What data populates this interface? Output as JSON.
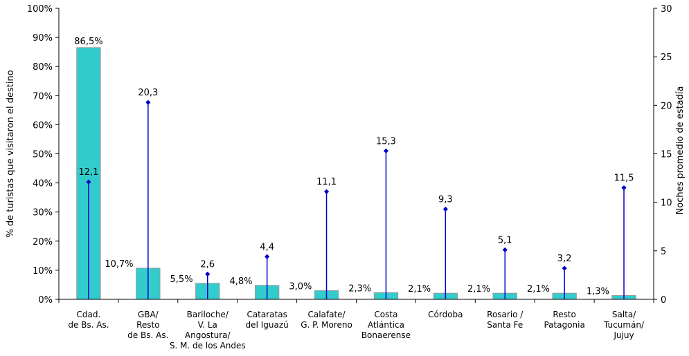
{
  "chart_data": {
    "type": "bar",
    "categories": [
      [
        "Cdad.",
        "de Bs. As."
      ],
      [
        "GBA/",
        "Resto",
        "de Bs. As."
      ],
      [
        "Bariloche/",
        "V. La",
        "Angostura/",
        "S. M. de los Andes"
      ],
      [
        "Cataratas",
        "del Iguazú"
      ],
      [
        "Calafate/",
        "G. P. Moreno"
      ],
      [
        "Costa",
        "Atlántica",
        "Bonaerense"
      ],
      [
        "Córdoba"
      ],
      [
        "Rosario /",
        "Santa Fe"
      ],
      [
        "Resto",
        "Patagonia"
      ],
      [
        "Salta/",
        "Tucumán/",
        "Jujuy"
      ]
    ],
    "series": [
      {
        "axis": "left",
        "type": "bar",
        "values": [
          86.5,
          10.7,
          5.5,
          4.8,
          3.0,
          2.3,
          2.1,
          2.1,
          2.1,
          1.3
        ],
        "labels": [
          "86,5%",
          "10,7%",
          "5,5%",
          "4,8%",
          "3,0%",
          "2,3%",
          "2,1%",
          "2,1%",
          "2,1%",
          "1,3%"
        ],
        "color": "#33CCCC"
      },
      {
        "axis": "right",
        "type": "lollipop",
        "values": [
          12.1,
          20.3,
          2.6,
          4.4,
          11.1,
          15.3,
          9.3,
          5.1,
          3.2,
          11.5
        ],
        "labels": [
          "12,1",
          "20,3",
          "2,6",
          "4,4",
          "11,1",
          "15,3",
          "9,3",
          "5,1",
          "3,2",
          "11,5"
        ],
        "color": "#0000CC"
      }
    ],
    "ylabel_left": "% de turistas que visitaron el destino",
    "ylabel_right": "Noches promedio de estadía",
    "ylim_left": [
      0,
      100
    ],
    "ylim_right": [
      0,
      30
    ],
    "yticks_left": [
      "0%",
      "10%",
      "20%",
      "30%",
      "40%",
      "50%",
      "60%",
      "70%",
      "80%",
      "90%",
      "100%"
    ],
    "yticks_right": [
      "0",
      "5",
      "10",
      "15",
      "20",
      "25",
      "30"
    ],
    "grid": false,
    "legend": "none"
  }
}
